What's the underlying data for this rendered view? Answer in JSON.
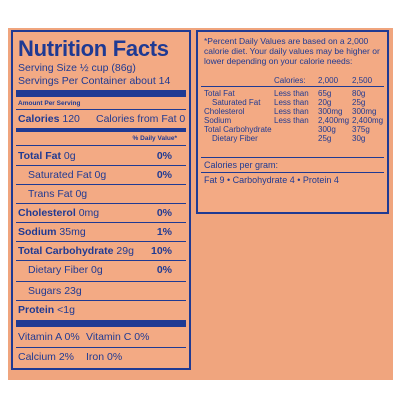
{
  "label": {
    "title": "Nutrition Facts",
    "serving_size": "Serving Size ½ cup (86g)",
    "servings_per_container": "Servings Per Container about 14",
    "amount_per_serving": "Amount Per Serving",
    "calories": "Calories",
    "calories_value": "120",
    "calories_from_fat": "Calories from Fat 0",
    "daily_value_header": "% Daily Value*",
    "nutrients": [
      {
        "name": "Total Fat",
        "amount": "0g",
        "pct": "0%"
      },
      {
        "name": "Saturated Fat",
        "amount": "0g",
        "pct": "0%"
      },
      {
        "name": "Trans Fat",
        "amount": "0g",
        "pct": ""
      },
      {
        "name": "Cholesterol",
        "amount": "0mg",
        "pct": "0%"
      },
      {
        "name": "Sodium",
        "amount": "35mg",
        "pct": "1%"
      },
      {
        "name": "Total Carbohydrate",
        "amount": "29g",
        "pct": "10%"
      },
      {
        "name": "Dietary Fiber",
        "amount": "0g",
        "pct": "0%"
      },
      {
        "name": "Sugars",
        "amount": "23g",
        "pct": ""
      },
      {
        "name": "Protein",
        "amount": "<1g",
        "pct": ""
      }
    ],
    "vitamins": [
      {
        "left": "Vitamin A 0%",
        "right": "Vitamin C 0%"
      },
      {
        "left": "Calcium 2%",
        "right": "Iron 0%"
      }
    ]
  },
  "daily_values": {
    "note": "*Percent Daily Values are based on a 2,000 calorie diet. Your daily values may be higher or lower depending on your calorie needs:",
    "header": [
      "",
      "Calories:",
      "2,000",
      "2,500"
    ],
    "rows": [
      [
        "Total Fat",
        "Less than",
        "65g",
        "80g"
      ],
      [
        "Saturated Fat",
        "Less than",
        "20g",
        "25g"
      ],
      [
        "Cholesterol",
        "Less than",
        "300mg",
        "300mg"
      ],
      [
        "Sodium",
        "Less than",
        "2,400mg",
        "2,400mg"
      ],
      [
        "Total Carbohydrate",
        "",
        "300g",
        "375g"
      ],
      [
        "Dietary Fiber",
        "",
        "25g",
        "30g"
      ]
    ],
    "calories_per_gram": "Calories per gram:",
    "per_gram_values": "Fat 9  •  Carbohydrate 4  •  Protein 4"
  }
}
